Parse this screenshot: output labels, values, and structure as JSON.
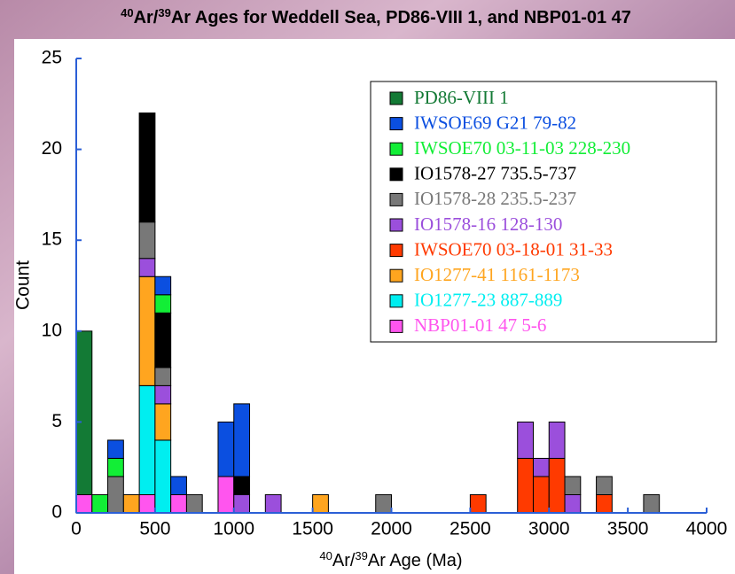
{
  "chart_data": {
    "type": "histogram",
    "title": [
      "40",
      "Ar/",
      "39",
      "Ar Ages for Weddell Sea, PD86-VIII 1, and NBP01-01 47"
    ],
    "x_label": [
      "40",
      "Ar/",
      "39",
      "Ar Age (Ma)"
    ],
    "y_label": "Count",
    "bins": [
      0,
      100,
      200,
      300,
      400,
      500,
      600,
      700,
      800,
      900,
      1000,
      1100,
      1200,
      1300,
      1400,
      1500,
      1600,
      1700,
      1800,
      1900,
      2000,
      2100,
      2200,
      2300,
      2400,
      2500,
      2600,
      2700,
      2800,
      2900,
      3000,
      3100,
      3200,
      3300,
      3400,
      3500,
      3600,
      3700,
      3800,
      3900,
      4000
    ],
    "stacked": true,
    "series": [
      {
        "name": "PD86-VIII 1",
        "color": "#137a35",
        "values": [
          9,
          0,
          0,
          0,
          0,
          0,
          0,
          0,
          0,
          0,
          0,
          0,
          0,
          0,
          0,
          0,
          0,
          0,
          0,
          0,
          0,
          0,
          0,
          0,
          0,
          0,
          0,
          0,
          0,
          0,
          0,
          0,
          0,
          0,
          0,
          0,
          0,
          0,
          0,
          0
        ]
      },
      {
        "name": "IWSOE69 G21 79-82",
        "color": "#0b4fe0",
        "values": [
          0,
          0,
          1,
          0,
          0,
          1,
          1,
          0,
          0,
          3,
          4,
          0,
          0,
          0,
          0,
          0,
          0,
          0,
          0,
          0,
          0,
          0,
          0,
          0,
          0,
          0,
          0,
          0,
          0,
          0,
          0,
          0,
          0,
          0,
          0,
          0,
          0,
          0,
          0,
          0
        ]
      },
      {
        "name": "IWSOE70 03-11-03 228-230",
        "color": "#12ee36",
        "values": [
          0,
          1,
          1,
          0,
          0,
          1,
          0,
          0,
          0,
          0,
          0,
          0,
          0,
          0,
          0,
          0,
          0,
          0,
          0,
          0,
          0,
          0,
          0,
          0,
          0,
          0,
          0,
          0,
          0,
          0,
          0,
          0,
          0,
          0,
          0,
          0,
          0,
          0,
          0,
          0
        ]
      },
      {
        "name": "IO1578-27 735.5-737",
        "color": "#000000",
        "values": [
          0,
          0,
          0,
          0,
          6,
          3,
          0,
          0,
          0,
          0,
          1,
          0,
          0,
          0,
          0,
          0,
          0,
          0,
          0,
          0,
          0,
          0,
          0,
          0,
          0,
          0,
          0,
          0,
          0,
          0,
          0,
          0,
          0,
          0,
          0,
          0,
          0,
          0,
          0,
          0
        ]
      },
      {
        "name": "IO1578-28 235.5-237",
        "color": "#787878",
        "values": [
          0,
          0,
          2,
          0,
          2,
          1,
          0,
          1,
          0,
          0,
          0,
          0,
          0,
          0,
          0,
          0,
          0,
          0,
          0,
          1,
          0,
          0,
          0,
          0,
          0,
          0,
          0,
          0,
          0,
          0,
          0,
          1,
          0,
          1,
          0,
          0,
          1,
          0,
          0,
          0
        ]
      },
      {
        "name": "IO1578-16 128-130",
        "color": "#9b4fdc",
        "values": [
          0,
          0,
          0,
          0,
          1,
          1,
          0,
          0,
          0,
          0,
          1,
          0,
          1,
          0,
          0,
          0,
          0,
          0,
          0,
          0,
          0,
          0,
          0,
          0,
          0,
          0,
          0,
          0,
          2,
          1,
          2,
          1,
          0,
          0,
          0,
          0,
          0,
          0,
          0,
          0
        ]
      },
      {
        "name": "IWSOE70 03-18-01 31-33",
        "color": "#ff3a00",
        "values": [
          0,
          0,
          0,
          0,
          0,
          0,
          0,
          0,
          0,
          0,
          0,
          0,
          0,
          0,
          0,
          0,
          0,
          0,
          0,
          0,
          0,
          0,
          0,
          0,
          0,
          1,
          0,
          0,
          3,
          2,
          3,
          0,
          0,
          1,
          0,
          0,
          0,
          0,
          0,
          0
        ]
      },
      {
        "name": "IO1277-41 1161-1173",
        "color": "#ffa51f",
        "values": [
          0,
          0,
          0,
          1,
          6,
          2,
          0,
          0,
          0,
          0,
          0,
          0,
          0,
          0,
          0,
          1,
          0,
          0,
          0,
          0,
          0,
          0,
          0,
          0,
          0,
          0,
          0,
          0,
          0,
          0,
          0,
          0,
          0,
          0,
          0,
          0,
          0,
          0,
          0,
          0
        ]
      },
      {
        "name": "IO1277-23 887-889",
        "color": "#00eef0",
        "values": [
          0,
          0,
          0,
          0,
          6,
          4,
          0,
          0,
          0,
          0,
          0,
          0,
          0,
          0,
          0,
          0,
          0,
          0,
          0,
          0,
          0,
          0,
          0,
          0,
          0,
          0,
          0,
          0,
          0,
          0,
          0,
          0,
          0,
          0,
          0,
          0,
          0,
          0,
          0,
          0
        ]
      },
      {
        "name": "NBP01-01 47 5-6",
        "color": "#ff55ee",
        "values": [
          1,
          0,
          0,
          0,
          1,
          0,
          1,
          0,
          0,
          2,
          0,
          0,
          0,
          0,
          0,
          0,
          0,
          0,
          0,
          0,
          0,
          0,
          0,
          0,
          0,
          0,
          0,
          0,
          0,
          0,
          0,
          0,
          0,
          0,
          0,
          0,
          0,
          0,
          0,
          0
        ]
      }
    ],
    "xlim": [
      0,
      4000
    ],
    "xticks": [
      0,
      500,
      1000,
      1500,
      2000,
      2500,
      3000,
      3500,
      4000
    ],
    "ylim": [
      0,
      25
    ],
    "yticks": [
      0,
      5,
      10,
      15,
      20,
      25
    ],
    "axis_color": "#2b5fd6",
    "legend": "upper right"
  }
}
